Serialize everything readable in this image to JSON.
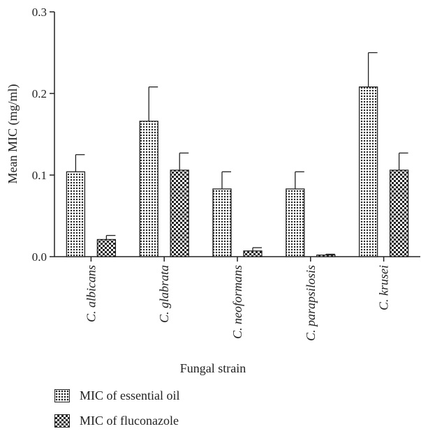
{
  "chart_data": {
    "type": "bar",
    "categories": [
      "C. albicans",
      "C. glabrata",
      "C. neoformans",
      "C. parapsilosis",
      "C. krusei"
    ],
    "series": [
      {
        "name": "MIC of essential oil",
        "values": [
          0.104,
          0.166,
          0.083,
          0.083,
          0.208
        ],
        "errors": [
          0.021,
          0.042,
          0.021,
          0.021,
          0.042
        ],
        "pattern": "dots"
      },
      {
        "name": "MIC of fluconazole",
        "values": [
          0.021,
          0.106,
          0.007,
          0.002,
          0.106
        ],
        "errors": [
          0.005,
          0.021,
          0.004,
          0.001,
          0.021
        ],
        "pattern": "checker"
      }
    ],
    "ylabel": "Mean MIC (mg/ml)",
    "xlabel": "Fungal strain",
    "ylim": [
      0,
      0.3
    ],
    "yticks": [
      "0.0",
      "0.1",
      "0.2",
      "0.3"
    ],
    "grid": false,
    "legend_position": "bottom-left"
  }
}
